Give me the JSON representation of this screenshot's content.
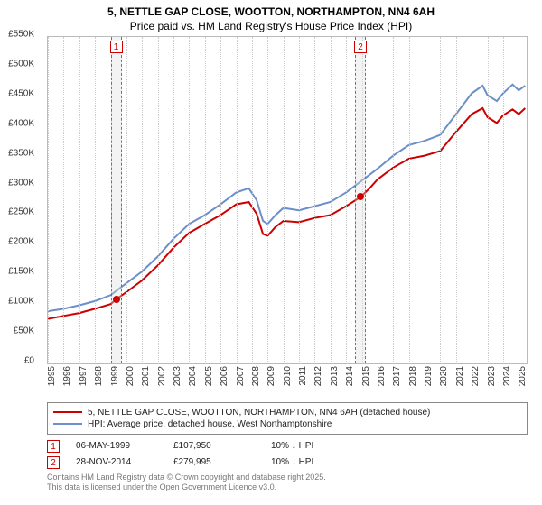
{
  "title_line1": "5, NETTLE GAP CLOSE, WOOTTON, NORTHAMPTON, NN4 6AH",
  "title_line2": "Price paid vs. HM Land Registry's House Price Index (HPI)",
  "chart": {
    "type": "line",
    "background_color": "#ffffff",
    "grid_color": "#cccccc",
    "border_color": "#bbbbbb",
    "ylim": [
      0,
      550
    ],
    "yticks": [
      0,
      50,
      100,
      150,
      200,
      250,
      300,
      350,
      400,
      450,
      500,
      550
    ],
    "ytick_labels": [
      "£0",
      "£50K",
      "£100K",
      "£150K",
      "£200K",
      "£250K",
      "£300K",
      "£350K",
      "£400K",
      "£450K",
      "£500K",
      "£550K"
    ],
    "xlim": [
      1995,
      2025.5
    ],
    "xticks": [
      1995,
      1996,
      1997,
      1998,
      1999,
      2000,
      2001,
      2002,
      2003,
      2004,
      2005,
      2006,
      2007,
      2008,
      2009,
      2010,
      2011,
      2012,
      2013,
      2014,
      2015,
      2016,
      2017,
      2018,
      2019,
      2020,
      2021,
      2022,
      2023,
      2024,
      2025
    ],
    "series": [
      {
        "name": "price_paid",
        "color": "#cc0000",
        "width": 2,
        "points": [
          [
            1995,
            75
          ],
          [
            1996,
            80
          ],
          [
            1997,
            85
          ],
          [
            1998,
            92
          ],
          [
            1999,
            100
          ],
          [
            1999.35,
            108
          ],
          [
            2000,
            120
          ],
          [
            2001,
            140
          ],
          [
            2002,
            165
          ],
          [
            2003,
            195
          ],
          [
            2004,
            220
          ],
          [
            2005,
            235
          ],
          [
            2006,
            250
          ],
          [
            2007,
            268
          ],
          [
            2007.8,
            272
          ],
          [
            2008.3,
            252
          ],
          [
            2008.7,
            218
          ],
          [
            2009,
            215
          ],
          [
            2009.5,
            230
          ],
          [
            2010,
            240
          ],
          [
            2011,
            238
          ],
          [
            2012,
            245
          ],
          [
            2013,
            250
          ],
          [
            2014,
            265
          ],
          [
            2014.9,
            280
          ],
          [
            2015.5,
            295
          ],
          [
            2016,
            310
          ],
          [
            2017,
            330
          ],
          [
            2018,
            345
          ],
          [
            2019,
            350
          ],
          [
            2020,
            358
          ],
          [
            2021,
            390
          ],
          [
            2022,
            420
          ],
          [
            2022.7,
            430
          ],
          [
            2023,
            415
          ],
          [
            2023.6,
            405
          ],
          [
            2024,
            418
          ],
          [
            2024.6,
            428
          ],
          [
            2025,
            420
          ],
          [
            2025.4,
            430
          ]
        ]
      },
      {
        "name": "hpi",
        "color": "#6b8fc9",
        "width": 2,
        "points": [
          [
            1995,
            88
          ],
          [
            1996,
            92
          ],
          [
            1997,
            98
          ],
          [
            1998,
            105
          ],
          [
            1999,
            115
          ],
          [
            2000,
            135
          ],
          [
            2001,
            155
          ],
          [
            2002,
            180
          ],
          [
            2003,
            210
          ],
          [
            2004,
            235
          ],
          [
            2005,
            250
          ],
          [
            2006,
            268
          ],
          [
            2007,
            288
          ],
          [
            2007.8,
            295
          ],
          [
            2008.3,
            275
          ],
          [
            2008.7,
            240
          ],
          [
            2009,
            235
          ],
          [
            2009.5,
            250
          ],
          [
            2010,
            262
          ],
          [
            2011,
            258
          ],
          [
            2012,
            265
          ],
          [
            2013,
            272
          ],
          [
            2014,
            288
          ],
          [
            2015,
            308
          ],
          [
            2016,
            328
          ],
          [
            2017,
            350
          ],
          [
            2018,
            368
          ],
          [
            2019,
            375
          ],
          [
            2020,
            385
          ],
          [
            2021,
            420
          ],
          [
            2022,
            455
          ],
          [
            2022.7,
            468
          ],
          [
            2023,
            452
          ],
          [
            2023.6,
            442
          ],
          [
            2024,
            455
          ],
          [
            2024.6,
            470
          ],
          [
            2025,
            460
          ],
          [
            2025.4,
            468
          ]
        ]
      }
    ],
    "sale_markers": [
      {
        "label": "1",
        "year": 1999.35,
        "price": 108,
        "color": "#cc0000"
      },
      {
        "label": "2",
        "year": 2014.91,
        "price": 280,
        "color": "#cc0000"
      }
    ],
    "band_halfwidth_years": 0.35
  },
  "legend": {
    "items": [
      {
        "color": "#cc0000",
        "text": "5, NETTLE GAP CLOSE, WOOTTON, NORTHAMPTON, NN4 6AH (detached house)"
      },
      {
        "color": "#6b8fc9",
        "text": "HPI: Average price, detached house, West Northamptonshire"
      }
    ]
  },
  "sales": [
    {
      "tag": "1",
      "date": "06-MAY-1999",
      "price": "£107,950",
      "delta": "10% ↓ HPI"
    },
    {
      "tag": "2",
      "date": "28-NOV-2014",
      "price": "£279,995",
      "delta": "10% ↓ HPI"
    }
  ],
  "footnote_line1": "Contains HM Land Registry data © Crown copyright and database right 2025.",
  "footnote_line2": "This data is licensed under the Open Government Licence v3.0."
}
